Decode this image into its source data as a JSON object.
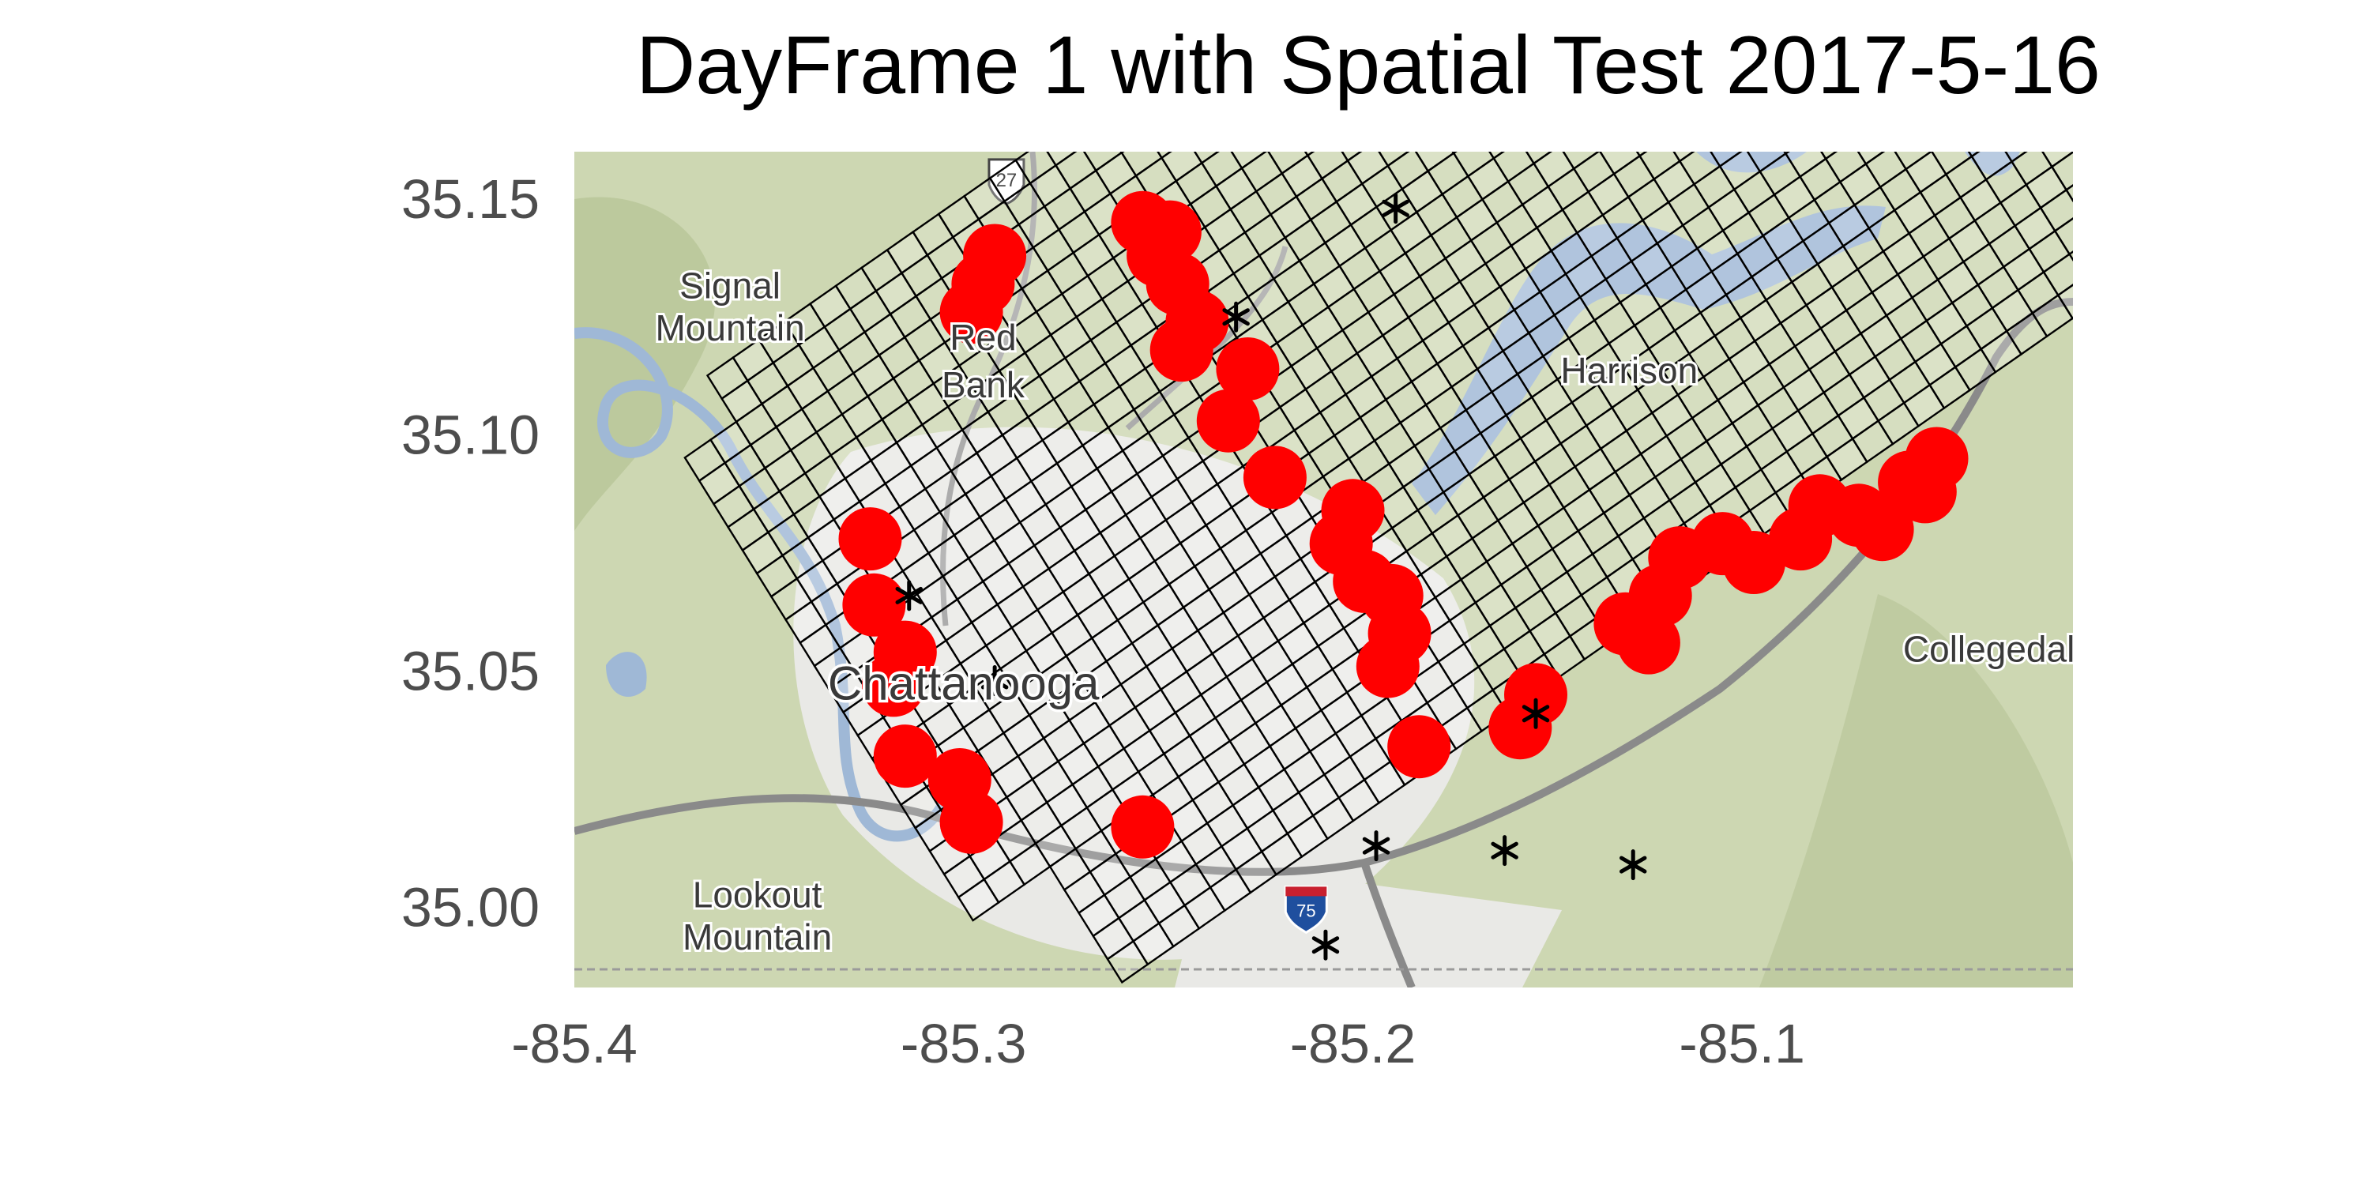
{
  "title": "DayFrame 1 with Spatial Test 2017-5-16",
  "axes": {
    "x": {
      "min": -85.4,
      "max": -85.015,
      "ticks": [
        "-85.4",
        "-85.3",
        "-85.2",
        "-85.1"
      ],
      "tick_values": [
        -85.4,
        -85.3,
        -85.2,
        -85.1
      ]
    },
    "y": {
      "min": 34.983,
      "max": 35.16,
      "ticks": [
        "35.00",
        "35.05",
        "35.10",
        "35.15"
      ],
      "tick_values": [
        35.0,
        35.05,
        35.1,
        35.15
      ]
    }
  },
  "map": {
    "labels": [
      {
        "text": "Signal",
        "lon": -85.36,
        "lat": 35.129
      },
      {
        "text": "Mountain",
        "lon": -85.36,
        "lat": 35.12
      },
      {
        "text": "Red",
        "lon": -85.295,
        "lat": 35.118
      },
      {
        "text": "Bank",
        "lon": -85.295,
        "lat": 35.108
      },
      {
        "text": "Harrison",
        "lon": -85.129,
        "lat": 35.111
      },
      {
        "text": "Collegedale",
        "lon": -85.034,
        "lat": 35.052
      },
      {
        "text": "Lookout",
        "lon": -85.353,
        "lat": 35.0
      },
      {
        "text": "Mountain",
        "lon": -85.353,
        "lat": 34.991
      },
      {
        "text": "Chattanooga",
        "lon": -85.3,
        "lat": 35.044,
        "big": true
      }
    ],
    "colors": {
      "terrain": "#cdd7b2",
      "urban": "#e9e9e6",
      "water": "#9fb8d6",
      "grid": "#000000",
      "point": "#ff0000"
    },
    "shields": [
      {
        "text": "27",
        "lon": -85.289,
        "lat": 35.154,
        "kind": "us-route"
      },
      {
        "text": "75",
        "lon": -85.212,
        "lat": 35.0,
        "kind": "interstate"
      }
    ]
  },
  "chart_data": {
    "type": "scatter",
    "title": "DayFrame 1 with Spatial Test 2017-5-16",
    "xlim": [
      -85.4,
      -85.015
    ],
    "ylim": [
      34.983,
      35.16
    ],
    "grid_region": {
      "origin": [
        -85.379,
        35.105
      ],
      "u_step": [
        0.0066,
        0.0038
      ],
      "v_step": [
        0.0037,
        -0.0049
      ],
      "u_count": 43,
      "v_count": 27,
      "omit_corners": true
    },
    "hotspots": [
      {
        "lon": -85.292,
        "lat": 35.138
      },
      {
        "lon": -85.295,
        "lat": 35.132
      },
      {
        "lon": -85.298,
        "lat": 35.126
      },
      {
        "lon": -85.254,
        "lat": 35.145
      },
      {
        "lon": -85.247,
        "lat": 35.143
      },
      {
        "lon": -85.25,
        "lat": 35.138
      },
      {
        "lon": -85.245,
        "lat": 35.132
      },
      {
        "lon": -85.24,
        "lat": 35.124
      },
      {
        "lon": -85.244,
        "lat": 35.118
      },
      {
        "lon": -85.227,
        "lat": 35.114
      },
      {
        "lon": -85.232,
        "lat": 35.103
      },
      {
        "lon": -85.22,
        "lat": 35.091
      },
      {
        "lon": -85.2,
        "lat": 35.084
      },
      {
        "lon": -85.203,
        "lat": 35.077
      },
      {
        "lon": -85.197,
        "lat": 35.069
      },
      {
        "lon": -85.19,
        "lat": 35.066
      },
      {
        "lon": -85.188,
        "lat": 35.058
      },
      {
        "lon": -85.191,
        "lat": 35.051
      },
      {
        "lon": -85.183,
        "lat": 35.034
      },
      {
        "lon": -85.153,
        "lat": 35.045
      },
      {
        "lon": -85.157,
        "lat": 35.038
      },
      {
        "lon": -85.13,
        "lat": 35.06
      },
      {
        "lon": -85.124,
        "lat": 35.056
      },
      {
        "lon": -85.121,
        "lat": 35.066
      },
      {
        "lon": -85.116,
        "lat": 35.074
      },
      {
        "lon": -85.105,
        "lat": 35.077
      },
      {
        "lon": -85.097,
        "lat": 35.073
      },
      {
        "lon": -85.085,
        "lat": 35.078
      },
      {
        "lon": -85.08,
        "lat": 35.085
      },
      {
        "lon": -85.07,
        "lat": 35.083
      },
      {
        "lon": -85.064,
        "lat": 35.08
      },
      {
        "lon": -85.057,
        "lat": 35.09
      },
      {
        "lon": -85.053,
        "lat": 35.088
      },
      {
        "lon": -85.05,
        "lat": 35.095
      },
      {
        "lon": -85.324,
        "lat": 35.078
      },
      {
        "lon": -85.323,
        "lat": 35.064
      },
      {
        "lon": -85.315,
        "lat": 35.054
      },
      {
        "lon": -85.318,
        "lat": 35.047
      },
      {
        "lon": -85.315,
        "lat": 35.032
      },
      {
        "lon": -85.301,
        "lat": 35.027
      },
      {
        "lon": -85.298,
        "lat": 35.018
      },
      {
        "lon": -85.254,
        "lat": 35.017
      }
    ],
    "markers": [
      {
        "lon": -85.189,
        "lat": 35.148
      },
      {
        "lon": -85.23,
        "lat": 35.125
      },
      {
        "lon": -85.314,
        "lat": 35.066
      },
      {
        "lon": -85.292,
        "lat": 35.048
      },
      {
        "lon": -85.153,
        "lat": 35.041
      },
      {
        "lon": -85.194,
        "lat": 35.013
      },
      {
        "lon": -85.161,
        "lat": 35.012
      },
      {
        "lon": -85.128,
        "lat": 35.009
      },
      {
        "lon": -85.207,
        "lat": 34.992
      }
    ]
  }
}
